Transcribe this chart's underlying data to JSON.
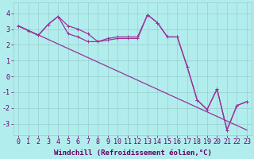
{
  "background_color": "#b2eded",
  "grid_color": "#99cccc",
  "line_color": "#993399",
  "xlim_min": -0.5,
  "xlim_max": 23.5,
  "ylim_min": -3.7,
  "ylim_max": 4.7,
  "yticks": [
    -3,
    -2,
    -1,
    0,
    1,
    2,
    3,
    4
  ],
  "xticks": [
    0,
    1,
    2,
    3,
    4,
    5,
    6,
    7,
    8,
    9,
    10,
    11,
    12,
    13,
    14,
    15,
    16,
    17,
    18,
    19,
    20,
    21,
    22,
    23
  ],
  "line1_x": [
    0,
    1,
    2,
    3,
    4,
    5,
    6,
    7,
    8,
    9,
    10,
    11,
    12,
    13,
    14,
    15,
    16,
    17,
    18,
    19,
    20,
    21,
    22,
    23
  ],
  "line1_y": [
    3.2,
    2.9,
    2.6,
    3.3,
    3.8,
    3.2,
    3.0,
    2.7,
    2.2,
    2.4,
    2.5,
    2.5,
    2.5,
    3.9,
    3.4,
    2.5,
    2.5,
    0.6,
    -1.5,
    -2.1,
    -0.8,
    -3.4,
    -1.85,
    -1.6
  ],
  "line2_x": [
    0,
    1,
    2,
    3,
    4,
    5,
    6,
    7,
    8,
    9,
    10,
    11,
    12,
    13,
    14,
    15,
    16,
    17,
    18,
    19,
    20,
    21,
    22,
    23
  ],
  "line2_y": [
    3.2,
    2.9,
    2.6,
    3.3,
    3.8,
    2.7,
    2.5,
    2.2,
    2.2,
    2.3,
    2.4,
    2.4,
    2.4,
    3.9,
    3.4,
    2.5,
    2.5,
    0.6,
    -1.5,
    -2.1,
    -0.8,
    -3.4,
    -1.85,
    -1.6
  ],
  "line3_x": [
    0,
    23
  ],
  "line3_y": [
    3.2,
    -3.4
  ],
  "xlabel": "Windchill (Refroidissement éolien,°C)",
  "xlabel_fontsize": 6.5,
  "tick_fontsize": 6,
  "linewidth": 0.9,
  "marker_size": 2.5,
  "marker_edge_width": 0.7
}
